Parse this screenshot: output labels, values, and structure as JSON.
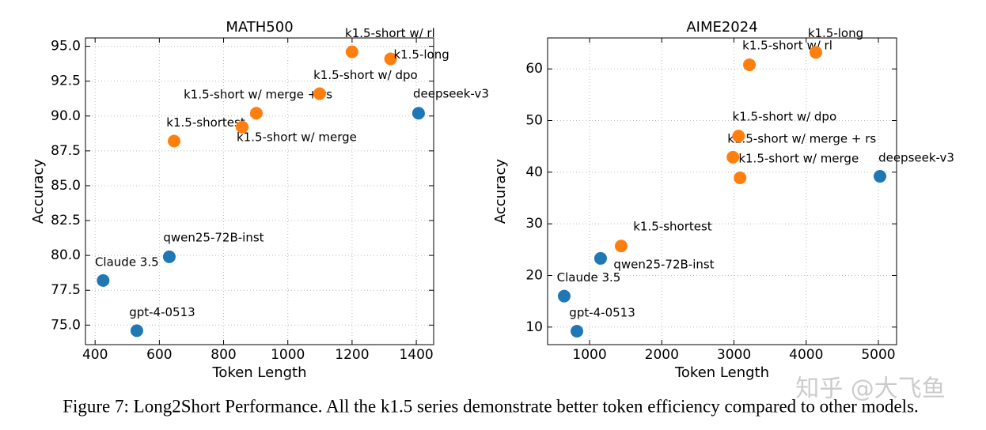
{
  "chart_data": [
    {
      "type": "scatter",
      "title": "MATH500",
      "xlabel": "Token Length",
      "ylabel": "Accuracy",
      "xlim": [
        370,
        1454
      ],
      "xticks": [
        400,
        600,
        800,
        1000,
        1200,
        1400
      ],
      "ylim": [
        73.6,
        95.6
      ],
      "yticks": [
        {
          "value": 75,
          "label": "75.0"
        },
        77.5,
        {
          "value": 80,
          "label": "80.0"
        },
        82.5,
        {
          "value": 85,
          "label": "85.0"
        },
        87.5,
        {
          "value": 90,
          "label": "90.0"
        },
        92.5,
        {
          "value": 95,
          "label": "95.0"
        }
      ],
      "grid": true,
      "series": [
        {
          "color": "#1f77b4",
          "x": [
            425,
            530,
            631,
            1407
          ],
          "values": [
            78.2,
            74.6,
            79.9,
            90.2
          ],
          "labels": [
            "Claude 3.5",
            "gpt-4-0513",
            "qwen25-72B-inst",
            "deepseek-v3"
          ]
        },
        {
          "color": "#ff7f0e",
          "x": [
            646,
            902,
            858,
            1099,
            1200,
            1320
          ],
          "values": [
            88.2,
            90.2,
            89.2,
            91.6,
            94.6,
            94.1
          ],
          "labels": [
            "k1.5-shortest",
            "k1.5-short w/ merge",
            "k1.5-short w/ merge + rs",
            "k1.5-short w/ dpo",
            "k1.5-short w/ rl",
            "k1.5-long"
          ]
        }
      ]
    },
    {
      "type": "scatter",
      "title": "AIME2024",
      "xlabel": "Token Length",
      "ylabel": "Accuracy",
      "xlim": [
        419,
        5252
      ],
      "xticks": [
        1000,
        2000,
        3000,
        4000,
        5000
      ],
      "ylim": [
        6.6,
        66
      ],
      "yticks": [
        10,
        20,
        30,
        40,
        50,
        60
      ],
      "grid": true,
      "series": [
        {
          "color": "#1f77b4",
          "x": [
            649,
            825,
            1153,
            5022
          ],
          "values": [
            16.0,
            9.2,
            23.3,
            39.2
          ],
          "labels": [
            "Claude 3.5",
            "gpt-4-0513",
            "qwen25-72B-inst",
            "deepseek-v3"
          ]
        },
        {
          "color": "#ff7f0e",
          "x": [
            1438,
            3085,
            2986,
            3064,
            3214,
            4134
          ],
          "values": [
            25.7,
            38.9,
            42.9,
            47.0,
            60.8,
            63.2
          ],
          "labels": [
            "k1.5-shortest",
            "k1.5-short w/ merge",
            "k1.5-short w/ merge + rs",
            "k1.5-short w/ dpo",
            "k1.5-short w/ rl",
            "k1.5-long"
          ]
        }
      ]
    }
  ],
  "caption": "Figure 7: Long2Short Performance. All the k1.5 series demonstrate better token efficiency compared to other models.",
  "watermark": "知乎 @大飞鱼"
}
